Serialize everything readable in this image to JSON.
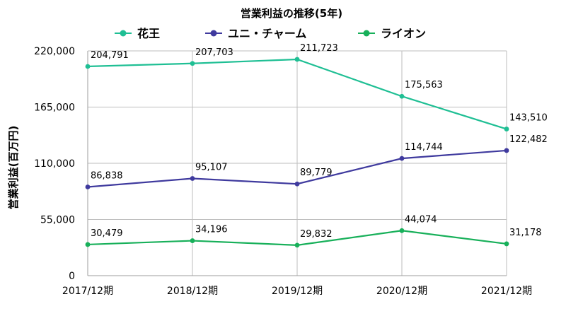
{
  "chart_data": {
    "type": "line",
    "title": "営業利益の推移(5年)",
    "xlabel": "",
    "ylabel": "営業利益(百万円)",
    "categories": [
      "2017/12期",
      "2018/12期",
      "2019/12期",
      "2020/12期",
      "2021/12期"
    ],
    "ylim": [
      0,
      220000
    ],
    "yticks": [
      "0",
      "55,000",
      "110,000",
      "165,000",
      "220,000"
    ],
    "ytick_values": [
      0,
      55000,
      110000,
      165000,
      220000
    ],
    "grid": true,
    "legend_position": "top",
    "series": [
      {
        "name": "花王",
        "color": "#1fbf94",
        "values": [
          204791,
          207703,
          211723,
          175563,
          143510
        ],
        "labels": [
          "204,791",
          "207,703",
          "211,723",
          "175,563",
          "143,510"
        ]
      },
      {
        "name": "ユニ・チャーム",
        "color": "#3f3a9e",
        "values": [
          86838,
          95107,
          89779,
          114744,
          122482
        ],
        "labels": [
          "86,838",
          "95,107",
          "89,779",
          "114,744",
          "122,482"
        ]
      },
      {
        "name": "ライオン",
        "color": "#18b05a",
        "values": [
          30479,
          34196,
          29832,
          44074,
          31178
        ],
        "labels": [
          "30,479",
          "34,196",
          "29,832",
          "44,074",
          "31,178"
        ]
      }
    ]
  }
}
